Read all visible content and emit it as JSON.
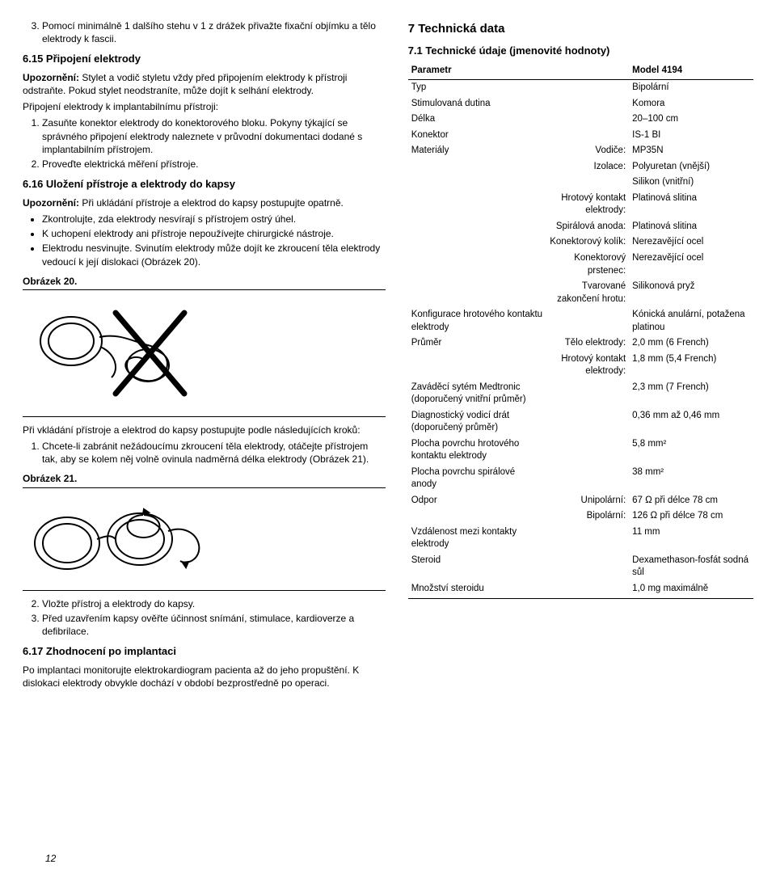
{
  "left": {
    "ol_step3": "Pomocí minimálně 1 dalšího stehu v 1 z drážek přivažte fixační objímku a tělo elektrody k fascii.",
    "h_615": "6.15 Připojení elektrody",
    "warn_615_lead": "Upozornění:",
    "warn_615": " Stylet a vodič styletu vždy před připojením elektrody k přístroji odstraňte. Pokud stylet neodstraníte, může dojít k selhání elektrody.",
    "p_connect": "Připojení elektrody k implantabilnímu přístroji:",
    "ol1_1": "Zasuňte konektor elektrody do konektorového bloku. Pokyny týkající se správného připojení elektrody naleznete v průvodní dokumentaci dodané s implantabilním přístrojem.",
    "ol1_2": "Proveďte elektrická měření přístroje.",
    "h_616": "6.16 Uložení přístroje a elektrody do kapsy",
    "warn_616_lead": "Upozornění:",
    "warn_616": " Při ukládání přístroje a elektrod do kapsy postupujte opatrně.",
    "b1": "Zkontrolujte, zda elektrody nesvírají s přístrojem ostrý úhel.",
    "b2": "K uchopení elektrody ani přístroje nepoužívejte chirurgické nástroje.",
    "b3": "Elektrodu nesvinujte. Svinutím elektrody může dojít ke zkroucení těla elektrody vedoucí k její dislokaci (Obrázek 20).",
    "fig20": "Obrázek 20.",
    "p_after20": "Při vkládání přístroje a elektrod do kapsy postupujte podle následujících kroků:",
    "ol2_1": "Chcete-li zabránit nežádoucímu zkroucení těla elektrody, otáčejte přístrojem tak, aby se kolem něj volně ovinula nadměrná délka elektrody (Obrázek 21).",
    "fig21": "Obrázek 21.",
    "ol3_2": "Vložte přístroj a elektrody do kapsy.",
    "ol3_3": "Před uzavřením kapsy ověřte účinnost snímání, stimulace, kardioverze a defibrilace.",
    "h_617": "6.17 Zhodnocení po implantaci",
    "p_617": "Po implantaci monitorujte elektrokardiogram pacienta až do jeho propuštění. K dislokaci elektrody obvykle dochází v období bezprostředně po operaci."
  },
  "right": {
    "h7": "7  Technická data",
    "h71": "7.1  Technické údaje (jmenovité hodnoty)",
    "th_param": "Parametr",
    "th_model": "Model 4194",
    "rows": [
      {
        "p": "Typ",
        "s": "",
        "v": "Bipolární"
      },
      {
        "p": "Stimulovaná dutina",
        "s": "",
        "v": "Komora"
      },
      {
        "p": "Délka",
        "s": "",
        "v": "20–100 cm"
      },
      {
        "p": "Konektor",
        "s": "",
        "v": "IS-1 BI"
      },
      {
        "p": "Materiály",
        "s": "Vodiče:",
        "v": "MP35N"
      },
      {
        "p": "",
        "s": "Izolace:",
        "v": "Polyuretan (vnější)"
      },
      {
        "p": "",
        "s": "",
        "v": "Silikon (vnitřní)"
      },
      {
        "p": "",
        "s": "Hrotový kontakt elektrody:",
        "v": "Platinová slitina"
      },
      {
        "p": "",
        "s": "Spirálová anoda:",
        "v": "Platinová slitina"
      },
      {
        "p": "",
        "s": "Konektorový kolík:",
        "v": "Nerezavějící ocel"
      },
      {
        "p": "",
        "s": "Konektorový prstenec:",
        "v": "Nerezavějící ocel"
      },
      {
        "p": "",
        "s": "Tvarované zakončení hrotu:",
        "v": "Silikonová pryž"
      },
      {
        "p": "Konfigurace hrotového kontaktu elektrody",
        "s": "",
        "v": "Kónická anulární, potažena platinou"
      },
      {
        "p": "Průměr",
        "s": "Tělo elektrody:",
        "v": "2,0 mm (6 French)"
      },
      {
        "p": "",
        "s": "Hrotový kontakt elektrody:",
        "v": "1,8 mm (5,4 French)"
      },
      {
        "p": "Zaváděcí sytém Medtronic (doporučený vnitřní průměr)",
        "s": "",
        "v": "2,3 mm (7 French)"
      },
      {
        "p": "Diagnostický vodicí drát (doporučený průměr)",
        "s": "",
        "v": "0,36 mm až 0,46 mm"
      },
      {
        "p": "Plocha povrchu hrotového kontaktu elektrody",
        "s": "",
        "v": "5,8 mm²"
      },
      {
        "p": "Plocha povrchu spirálové anody",
        "s": "",
        "v": "38 mm²"
      },
      {
        "p": "Odpor",
        "s": "Unipolární:",
        "v": "67 Ω při délce 78 cm"
      },
      {
        "p": "",
        "s": "Bipolární:",
        "v": "126 Ω při délce 78 cm"
      },
      {
        "p": "Vzdálenost mezi kontakty elektrody",
        "s": "",
        "v": "11 mm"
      },
      {
        "p": "Steroid",
        "s": "",
        "v": "Dexamethason-fosfát sodná sůl"
      },
      {
        "p": "Množství steroidu",
        "s": "",
        "v": "1,0 mg maximálně"
      }
    ]
  },
  "page_number": "12"
}
